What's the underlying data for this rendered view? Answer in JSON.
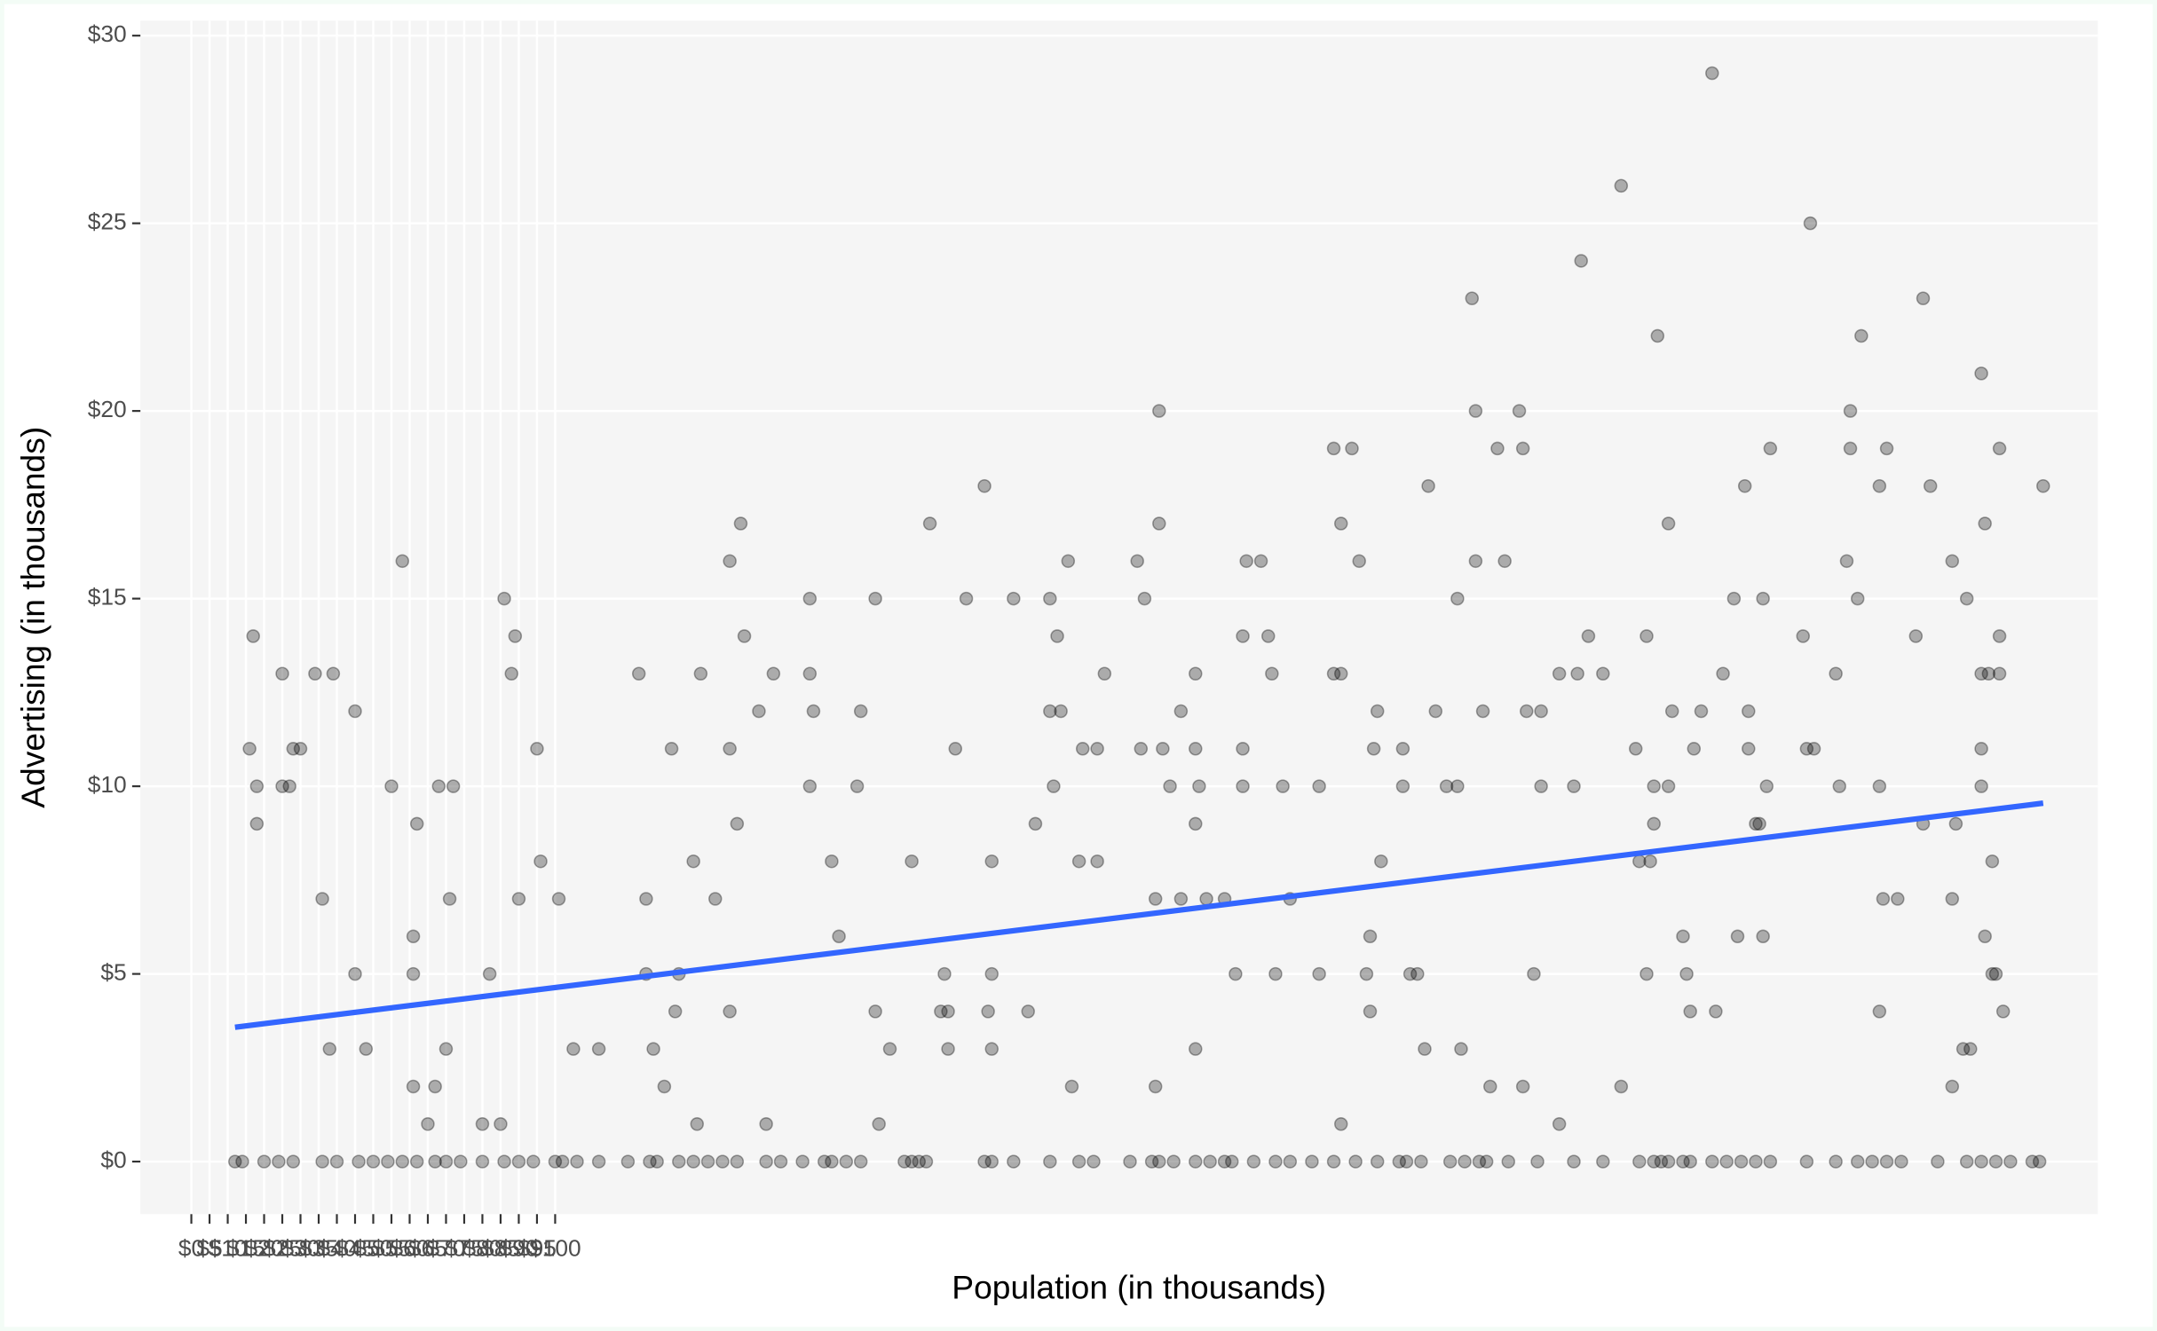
{
  "chart_data": {
    "type": "scatter",
    "x_label": "Population (in thousands)",
    "y_label": "Advertising (in thousands)",
    "x": [
      17,
      16,
      18,
      18,
      25,
      25,
      27,
      28,
      30,
      34,
      36,
      38,
      39,
      45,
      45,
      48,
      55,
      58,
      61,
      61,
      62,
      61,
      65,
      67,
      68,
      72,
      71,
      70,
      80,
      82,
      85,
      86,
      88,
      89,
      90,
      95,
      96,
      101,
      105,
      112,
      123,
      125,
      125,
      127,
      130,
      132,
      133,
      134,
      138,
      139,
      140,
      144,
      148,
      148,
      148,
      150,
      151,
      152,
      156,
      158,
      160,
      170,
      170,
      170,
      171,
      176,
      178,
      184,
      183,
      188,
      188,
      189,
      192,
      198,
      203,
      206,
      207,
      208,
      208,
      210,
      213,
      218,
      219,
      220,
      220,
      220,
      226,
      230,
      232,
      236,
      236,
      237,
      238,
      239,
      241,
      242,
      244,
      245,
      249,
      249,
      251,
      260,
      262,
      261,
      265,
      265,
      266,
      266,
      267,
      269,
      272,
      272,
      276,
      276,
      276,
      276,
      277,
      279,
      284,
      287,
      289,
      289,
      289,
      290,
      294,
      296,
      297,
      298,
      300,
      302,
      310,
      310,
      314,
      314,
      316,
      316,
      316,
      319,
      321,
      323,
      324,
      324,
      325,
      326,
      327,
      333,
      333,
      335,
      337,
      339,
      340,
      342,
      345,
      348,
      348,
      349,
      352,
      353,
      353,
      355,
      357,
      359,
      361,
      365,
      366,
      366,
      367,
      369,
      371,
      371,
      376,
      376,
      380,
      381,
      382,
      384,
      388,
      393,
      393,
      397,
      398,
      400,
      400,
      401,
      402,
      402,
      403,
      406,
      406,
      407,
      410,
      411,
      412,
      413,
      415,
      418,
      419,
      421,
      424,
      425,
      427,
      428,
      428,
      430,
      431,
      432,
      432,
      433,
      434,
      443,
      444,
      445,
      446,
      452,
      453,
      455,
      456,
      456,
      458,
      459,
      464,
      464,
      464,
      465,
      466,
      469,
      474,
      476,
      476,
      478,
      484,
      484,
      484,
      485,
      487,
      488,
      489,
      492,
      492,
      492,
      492,
      493,
      493,
      494,
      495,
      495,
      496,
      497,
      497,
      497,
      498,
      509,
      12,
      14,
      20,
      24,
      28,
      36,
      40,
      46,
      50,
      54,
      58,
      62,
      67,
      70,
      74,
      80,
      86,
      90,
      94,
      100,
      102,
      106,
      112,
      120,
      126,
      128,
      134,
      138,
      142,
      146,
      150,
      158,
      162,
      168,
      174,
      176,
      180,
      184,
      196,
      198,
      200,
      202,
      218,
      220,
      226,
      236,
      244,
      248,
      258,
      264,
      266,
      270,
      276,
      280,
      284,
      286,
      292,
      298,
      302,
      308,
      314,
      320,
      326,
      332,
      334,
      338,
      346,
      350,
      354,
      356,
      362,
      370,
      380,
      388,
      398,
      402,
      404,
      406,
      410,
      412,
      418,
      422,
      426,
      430,
      434,
      444,
      452,
      458,
      462,
      466,
      470,
      480,
      488,
      492,
      496,
      500,
      506,
      508
    ],
    "y": [
      14,
      11,
      10,
      9,
      13,
      10,
      10,
      11,
      11,
      13,
      7,
      3,
      13,
      12,
      5,
      3,
      10,
      16,
      6,
      5,
      9,
      2,
      1,
      2,
      10,
      10,
      7,
      3,
      1,
      5,
      1,
      15,
      13,
      14,
      7,
      11,
      8,
      7,
      3,
      3,
      13,
      7,
      5,
      3,
      2,
      11,
      4,
      5,
      8,
      1,
      13,
      7,
      16,
      11,
      4,
      9,
      17,
      14,
      12,
      1,
      13,
      15,
      13,
      10,
      12,
      8,
      6,
      12,
      10,
      15,
      4,
      1,
      3,
      8,
      17,
      4,
      5,
      3,
      4,
      11,
      15,
      18,
      4,
      5,
      8,
      3,
      15,
      4,
      9,
      12,
      15,
      10,
      14,
      12,
      16,
      2,
      8,
      11,
      11,
      8,
      13,
      16,
      15,
      11,
      7,
      2,
      20,
      17,
      11,
      10,
      12,
      7,
      13,
      11,
      9,
      3,
      10,
      7,
      7,
      5,
      14,
      11,
      10,
      16,
      16,
      14,
      13,
      5,
      10,
      7,
      10,
      5,
      19,
      13,
      17,
      13,
      1,
      19,
      16,
      5,
      6,
      4,
      11,
      12,
      8,
      10,
      11,
      5,
      5,
      3,
      18,
      12,
      10,
      15,
      10,
      3,
      23,
      16,
      20,
      12,
      2,
      19,
      16,
      20,
      19,
      2,
      12,
      5,
      12,
      10,
      13,
      1,
      10,
      13,
      24,
      14,
      13,
      2,
      26,
      11,
      8,
      14,
      5,
      8,
      9,
      10,
      22,
      17,
      10,
      12,
      6,
      5,
      4,
      11,
      12,
      29,
      4,
      13,
      15,
      6,
      18,
      11,
      12,
      9,
      9,
      15,
      6,
      10,
      19,
      14,
      11,
      25,
      11,
      13,
      10,
      16,
      20,
      19,
      15,
      22,
      4,
      18,
      10,
      7,
      19,
      7,
      14,
      23,
      9,
      18,
      16,
      7,
      2,
      9,
      3,
      15,
      3,
      21,
      13,
      11,
      10,
      17,
      6,
      13,
      8,
      5,
      5,
      19,
      13,
      14,
      4,
      18,
      0,
      0,
      0,
      0,
      0,
      0,
      0,
      0,
      0,
      0,
      0,
      0,
      0,
      0,
      0,
      0,
      0,
      0,
      0,
      0,
      0,
      0,
      0,
      0,
      0,
      0,
      0,
      0,
      0,
      0,
      0,
      0,
      0,
      0,
      0,
      0,
      0,
      0,
      0,
      0,
      0,
      0,
      0,
      0,
      0,
      0,
      0,
      0,
      0,
      0,
      0,
      0,
      0,
      0,
      0,
      0,
      0,
      0,
      0,
      0,
      0,
      0,
      0,
      0,
      0,
      0,
      0,
      0,
      0,
      0,
      0,
      0,
      0,
      0,
      0,
      0,
      0,
      0,
      0,
      0,
      0,
      0,
      0,
      0,
      0,
      0,
      0,
      0,
      0,
      0,
      0,
      0,
      0,
      0,
      0,
      0,
      0,
      0
    ],
    "color": "#000000",
    "trend": {
      "x": [
        12,
        509
      ],
      "y": [
        3.58,
        9.55
      ],
      "color": "#3366ff"
    },
    "xlim": [
      -14,
      524
    ],
    "ylim": [
      -1.4,
      30.4
    ],
    "xticks": [
      {
        "value": 0,
        "label": "$0"
      },
      {
        "value": 5,
        "label": "$5"
      },
      {
        "value": 10,
        "label": "$10"
      },
      {
        "value": 15,
        "label": "$15"
      },
      {
        "value": 20,
        "label": "$20"
      },
      {
        "value": 25,
        "label": "$25"
      },
      {
        "value": 30,
        "label": "$30"
      },
      {
        "value": 35,
        "label": "$35"
      },
      {
        "value": 40,
        "label": "$40"
      },
      {
        "value": 45,
        "label": "$45"
      },
      {
        "value": 50,
        "label": "$50"
      },
      {
        "value": 55,
        "label": "$55"
      },
      {
        "value": 60,
        "label": "$60"
      },
      {
        "value": 65,
        "label": "$65"
      },
      {
        "value": 70,
        "label": "$70"
      },
      {
        "value": 75,
        "label": "$75"
      },
      {
        "value": 80,
        "label": "$80"
      },
      {
        "value": 85,
        "label": "$85"
      },
      {
        "value": 90,
        "label": "$90"
      },
      {
        "value": 95,
        "label": "$95"
      },
      {
        "value": 100,
        "label": "$100"
      }
    ],
    "yticks": [
      {
        "value": 0,
        "label": "$0"
      },
      {
        "value": 5,
        "label": "$5"
      },
      {
        "value": 10,
        "label": "$10"
      },
      {
        "value": 15,
        "label": "$15"
      },
      {
        "value": 20,
        "label": "$20"
      },
      {
        "value": 25,
        "label": "$25"
      },
      {
        "value": 30,
        "label": "$30"
      }
    ],
    "grid": true
  }
}
